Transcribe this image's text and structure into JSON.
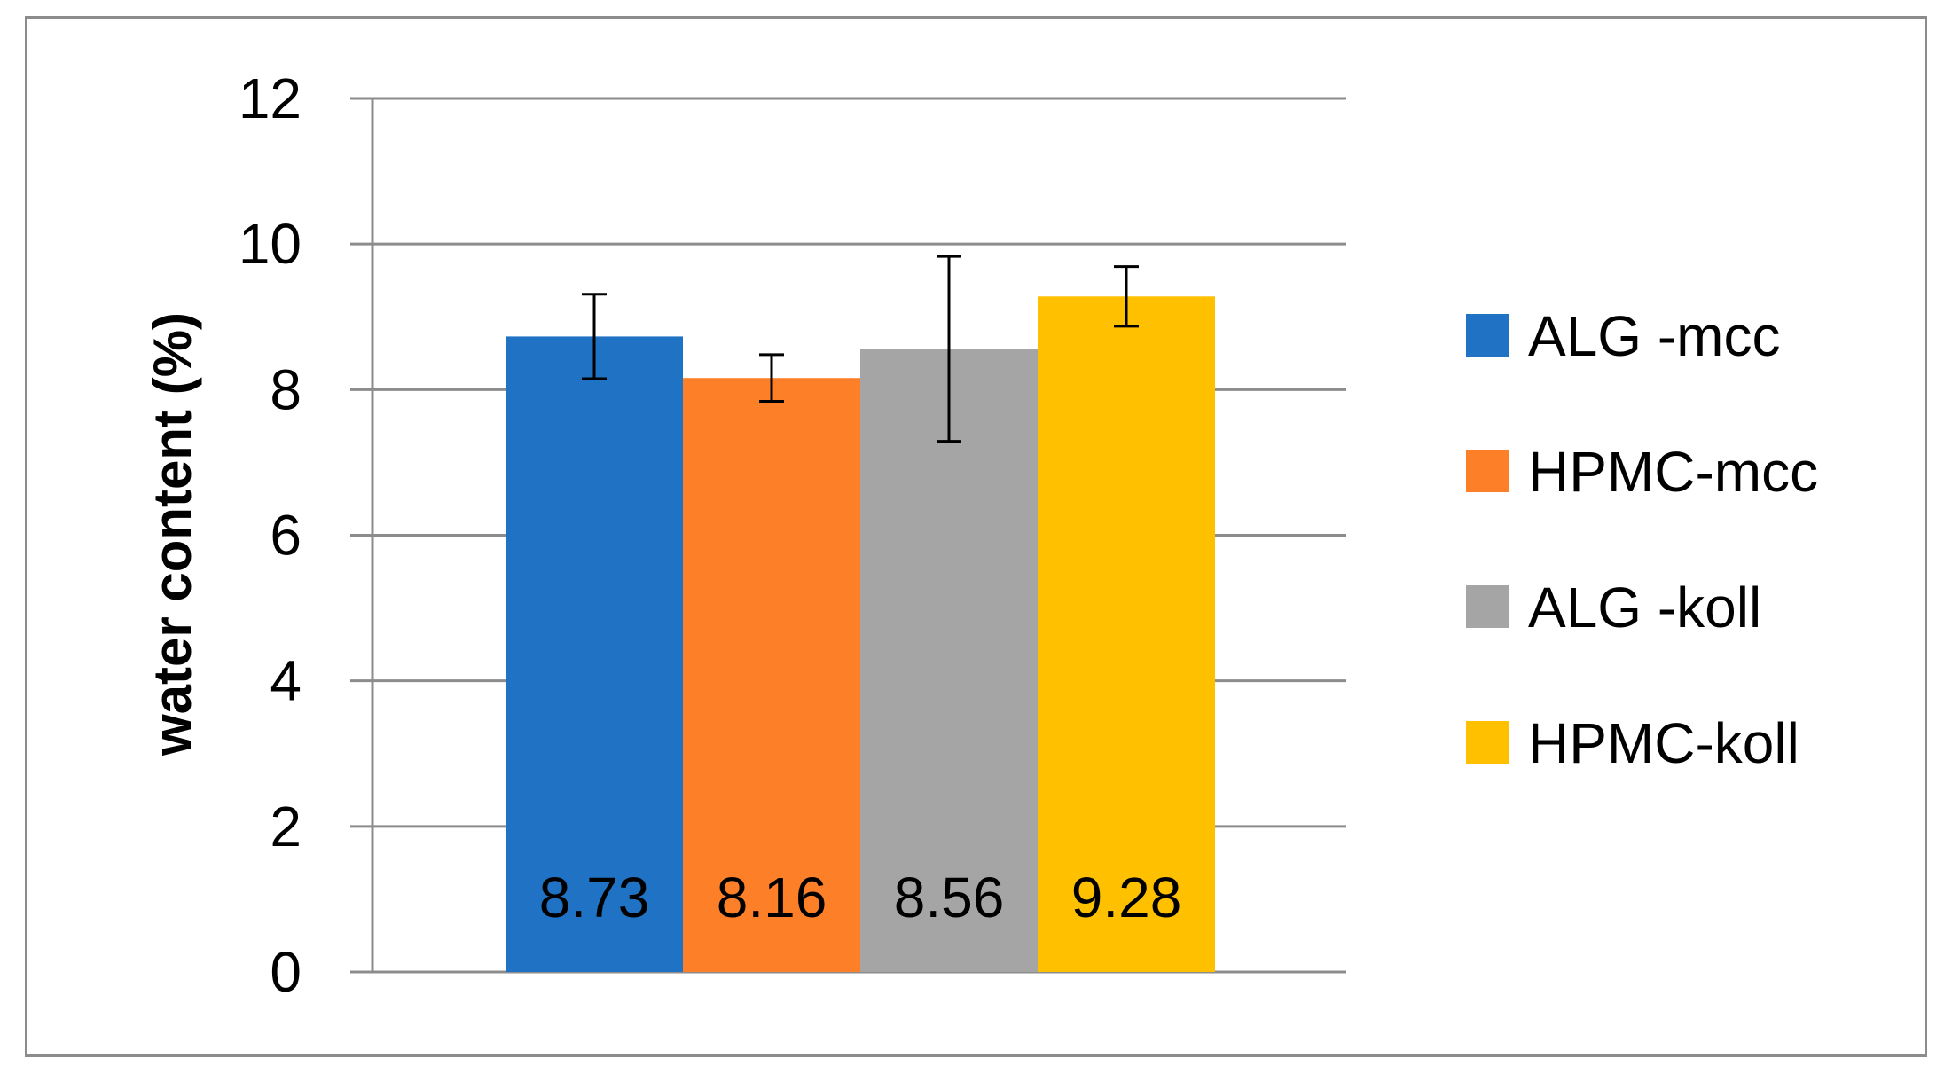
{
  "chart_data": {
    "type": "bar",
    "title": "",
    "xlabel": "",
    "ylabel": "water content (%)",
    "ylim": [
      0,
      12
    ],
    "yticks": [
      0,
      2,
      4,
      6,
      8,
      10,
      12
    ],
    "grid": true,
    "legend_position": "right",
    "series": [
      {
        "name": "ALG -mcc",
        "value": 8.73,
        "error": 0.58,
        "label": "8.73",
        "color": "#1f72c4"
      },
      {
        "name": "HPMC-mcc",
        "value": 8.16,
        "error": 0.32,
        "label": "8.16",
        "color": "#fd7f28"
      },
      {
        "name": "ALG -koll",
        "value": 8.56,
        "error": 1.27,
        "label": "8.56",
        "color": "#a5a5a5"
      },
      {
        "name": "HPMC-koll",
        "value": 9.28,
        "error": 0.41,
        "label": "9.28",
        "color": "#ffc000"
      }
    ],
    "colors": {
      "gridline": "#8c8c8c",
      "axis": "#8c8c8c",
      "error_bar": "#000000"
    }
  }
}
